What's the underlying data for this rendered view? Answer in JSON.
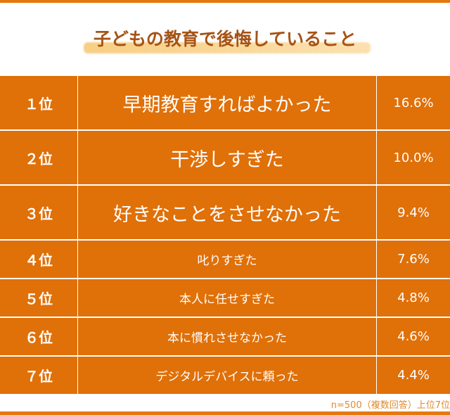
{
  "title": "子どもの教育で後悔していること",
  "rows": [
    {
      "rank": "１位",
      "item": "早期教育すればよかった",
      "pct": "16.6%"
    },
    {
      "rank": "２位",
      "item": "干渉しすぎた",
      "pct": "10.0%"
    },
    {
      "rank": "３位",
      "item": "好きなことをさせなかった",
      "pct": "9.4%"
    },
    {
      "rank": "４位",
      "item": "叱りすぎた",
      "pct": "7.6%"
    },
    {
      "rank": "５位",
      "item": "本人に任せすぎた",
      "pct": "4.8%"
    },
    {
      "rank": "６位",
      "item": "本に慣れさせなかった",
      "pct": "4.6%"
    },
    {
      "rank": "７位",
      "item": "デジタルデバイスに頼った",
      "pct": "4.4%"
    }
  ],
  "note": "n=500（複数回答）上位7位",
  "colors": {
    "accent": "#E07008",
    "title": "#A65316"
  }
}
